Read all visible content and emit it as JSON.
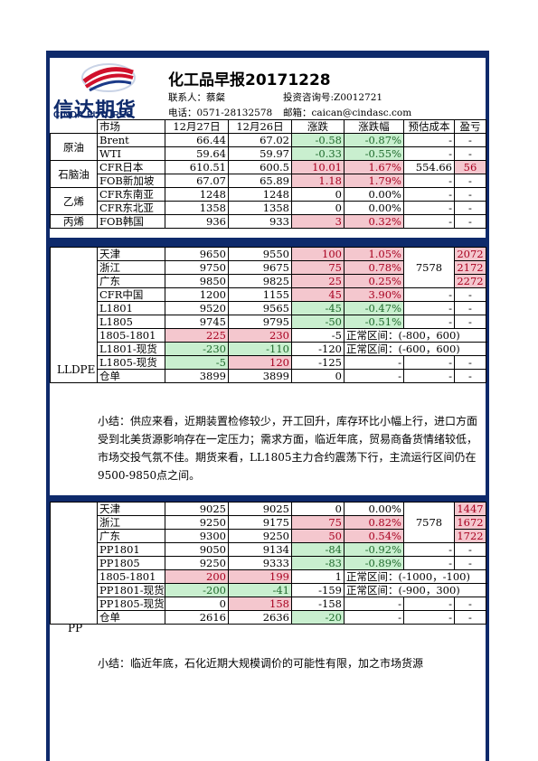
{
  "header": {
    "title": "化工品早报20171228",
    "contact": "联系人：蔡粲",
    "inquiry": "投资咨询号:Z0012721",
    "phone": "电话：0571-28132578",
    "email": "邮箱：caican@cindasc.com",
    "logo_cn": "信达期货",
    "logo_en": "CINDA FUTURES"
  },
  "columns": [
    "市场",
    "12月27日",
    "12月26日",
    "涨跌",
    "涨跌幅",
    "预估成本",
    "盈亏"
  ],
  "top_rows": [
    {
      "group": "原油",
      "market": "Brent",
      "d27": "66.44",
      "d26": "67.02",
      "chg": "-0.58",
      "pct": "-0.87%",
      "cost": "-",
      "pl": "-"
    },
    {
      "group": "",
      "market": "WTI",
      "d27": "59.64",
      "d26": "59.97",
      "chg": "-0.33",
      "pct": "-0.55%",
      "cost": "-",
      "pl": "-"
    },
    {
      "group": "石脑油",
      "market": "CFR日本",
      "d27": "610.51",
      "d26": "600.5",
      "chg": "10.01",
      "pct": "1.67%",
      "cost": "554.66",
      "pl": "56"
    },
    {
      "group": "",
      "market": "FOB新加坡",
      "d27": "67.07",
      "d26": "65.89",
      "chg": "1.18",
      "pct": "1.79%",
      "cost": "-",
      "pl": "-"
    },
    {
      "group": "乙烯",
      "market": "CFR东南亚",
      "d27": "1248",
      "d26": "1248",
      "chg": "0",
      "pct": "0.00%",
      "cost": "-",
      "pl": "-"
    },
    {
      "group": "",
      "market": "CFR东北亚",
      "d27": "1358",
      "d26": "1358",
      "chg": "0",
      "pct": "0.00%",
      "cost": "-",
      "pl": "-"
    },
    {
      "group": "丙烯",
      "market": "FOB韩国",
      "d27": "936",
      "d26": "933",
      "chg": "3",
      "pct": "0.32%",
      "cost": "-",
      "pl": "-"
    }
  ],
  "lldpe": {
    "label": "LLDPE",
    "cost": "7578",
    "rows": [
      {
        "market": "天津",
        "d27": "9650",
        "d26": "9550",
        "chg": "100",
        "pct": "1.05%",
        "pl": "2072"
      },
      {
        "market": "浙江",
        "d27": "9750",
        "d26": "9675",
        "chg": "75",
        "pct": "0.78%",
        "pl": "2172"
      },
      {
        "market": "广东",
        "d27": "9850",
        "d26": "9825",
        "chg": "25",
        "pct": "0.25%",
        "pl": "2272"
      },
      {
        "market": "CFR中国",
        "d27": "1200",
        "d26": "1155",
        "chg": "45",
        "pct": "3.90%",
        "pl": "-"
      },
      {
        "market": "L1801",
        "d27": "9520",
        "d26": "9565",
        "chg": "-45",
        "pct": "-0.47%",
        "pl": "-"
      },
      {
        "market": "L1805",
        "d27": "9745",
        "d26": "9795",
        "chg": "-50",
        "pct": "-0.51%",
        "pl": "-"
      }
    ],
    "spread_rows": [
      {
        "market": "1805-1801",
        "d27": "225",
        "d26": "230",
        "chg": "-5",
        "note": "正常区间：(-800，600)"
      },
      {
        "market": "L1801-现货",
        "d27": "-230",
        "d26": "-110",
        "chg": "-120",
        "note": "正常区间：(-600，600)"
      },
      {
        "market": "L1805-现货",
        "d27": "-5",
        "d26": "120",
        "chg": "-125",
        "pct": "-",
        "cost": "-",
        "pl": "-"
      }
    ],
    "warehouse": {
      "market": "仓单",
      "d27": "3899",
      "d26": "3899",
      "chg": "0",
      "pct": "-",
      "cost": "-",
      "pl": "-"
    },
    "summary": "小结：供应来看，近期装置检修较少，开工回升，库存环比小幅上行，进口方面受到北美货源影响存在一定压力；需求方面，临近年底，贸易商备货情绪较低，市场交投气氛不佳。期货来看，LL1805主力合约震荡下行，主流运行区间仍在9500-9850点之间。"
  },
  "pp": {
    "label": "PP",
    "cost": "7578",
    "rows": [
      {
        "market": "天津",
        "d27": "9025",
        "d26": "9025",
        "chg": "0",
        "pct": "0.00%",
        "pl": "1447"
      },
      {
        "market": "浙江",
        "d27": "9250",
        "d26": "9175",
        "chg": "75",
        "pct": "0.82%",
        "pl": "1672"
      },
      {
        "market": "广东",
        "d27": "9300",
        "d26": "9250",
        "chg": "50",
        "pct": "0.54%",
        "pl": "1722"
      },
      {
        "market": "PP1801",
        "d27": "9050",
        "d26": "9134",
        "chg": "-84",
        "pct": "-0.92%",
        "pl": "-"
      },
      {
        "market": "PP1805",
        "d27": "9250",
        "d26": "9333",
        "chg": "-83",
        "pct": "-0.89%",
        "pl": "-"
      }
    ],
    "spread_rows": [
      {
        "market": "1805-1801",
        "d27": "200",
        "d26": "199",
        "chg": "1",
        "note": "正常区间：(-1000，-100)"
      },
      {
        "market": "PP1801-现货",
        "d27": "-200",
        "d26": "-41",
        "chg": "-159",
        "note": "正常区间：(-900，300)"
      },
      {
        "market": "PP1805-现货",
        "d27": "0",
        "d26": "158",
        "chg": "-158",
        "pct": "-",
        "cost": "-",
        "pl": "-"
      }
    ],
    "warehouse": {
      "market": "仓单",
      "d27": "2616",
      "d26": "2636",
      "chg": "-20",
      "pct": "-",
      "cost": "-",
      "pl": "-"
    },
    "summary": "小结：临近年底，石化近期大规模调价的可能性有限，加之市场货源"
  }
}
